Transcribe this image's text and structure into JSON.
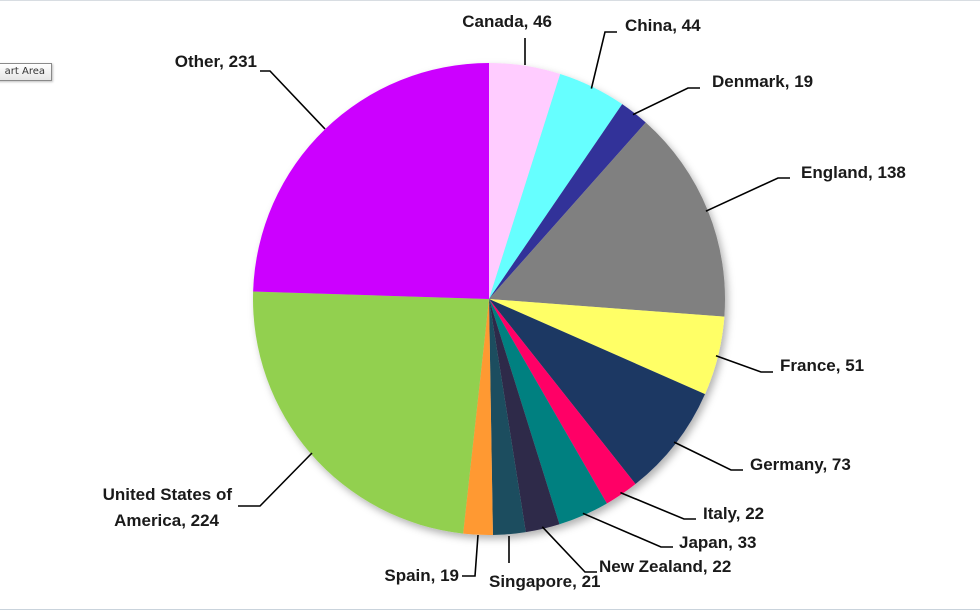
{
  "tooltip": {
    "text": "art Area"
  },
  "chart_data": {
    "type": "pie",
    "title": "",
    "start_angle_deg": 0,
    "direction": "clockwise",
    "categories": [
      "Canada",
      "China",
      "Denmark",
      "England",
      "France",
      "Germany",
      "Italy",
      "Japan",
      "New Zealand",
      "Singapore",
      "Spain",
      "United States of America",
      "Other"
    ],
    "values": [
      46,
      44,
      19,
      138,
      51,
      73,
      22,
      33,
      22,
      21,
      19,
      224,
      231
    ],
    "labels": [
      "Canada, 46",
      "China, 44",
      "Denmark, 19",
      "England, 138",
      "France, 51",
      "Germany, 73",
      "Italy, 22",
      "Japan, 33",
      "New Zealand, 22",
      "Singapore, 21",
      "Spain, 19",
      "United States of|America, 224",
      "Other, 231"
    ],
    "colors": [
      "#ffccff",
      "#66ffff",
      "#333399",
      "#808080",
      "#ffff66",
      "#1f3864",
      "#ff0066",
      "#008080",
      "#2e2a4a",
      "#1f4e5f",
      "#ff9933",
      "#92d050",
      "#cc00ff"
    ],
    "legend": "none",
    "data_labels": "outside-with-leader-lines"
  }
}
